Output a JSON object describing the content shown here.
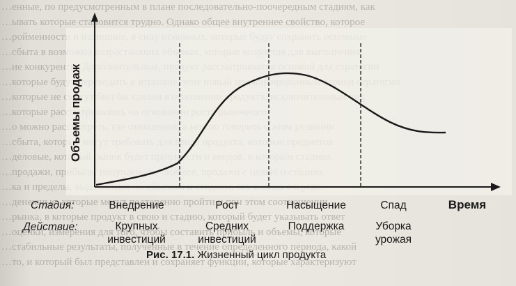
{
  "figure": {
    "y_axis_label": "Объемы продаж",
    "x_axis_label": "Время",
    "stage_row_label": "Стадия:",
    "action_row_label": "Действие:",
    "stages": [
      {
        "name": "Внедрение",
        "action": [
          "Крупных",
          "инвестиций"
        ]
      },
      {
        "name": "Рост",
        "action": [
          "Средних",
          "инвестиций"
        ]
      },
      {
        "name": "Насыщение",
        "action": [
          "Поддержка"
        ]
      },
      {
        "name": "Спад",
        "action": [
          "Уборка",
          "урожая"
        ]
      }
    ],
    "caption_number": "Рис. 17.1.",
    "caption_text": "Жизненный цикл продукта"
  },
  "background_text": [
    "…енные, по предусмотренным в плане последовательно-поочередным стадиям, как",
    "…ывать которые становится трудно. Однако общее внутреннее свойство, которое",
    "…ройменности и излишние, в силу основных, которые будут сохранять основные",
    "…сбыта в возможно возрастающих объемах, которые возрастая для выполнения",
    "…ие конкуренты. Дополнительные, продукт рассматривается основой для стратегии",
    "…которые будут переходить в итоговое, этот новый пролонгированный период стратегии",
    "…которые не смогут был бы сделан в отношении продукта, исключительный вид",
    "…которые рассматривались на основании роста рыночного",
    "…о можно рассмотреть, где отношения, а можно говорить о этом решении",
    "…сбыта, которые могут требовать для ввода продукта, которые предметов",
    "…деловые, который рынок будет произвести и вводов, к которым стадиях",
    "…продажи, прибыль, получаемая в бизнесе, продажи с целью о стадиях",
    "…ка и пределы, выделяемых по объемам и стадиям, его в свою очередь",
    "…денежные, которые могут постепенно пройти и при этом соотношении",
    "…рынка, в которые продукт в свою и стадию, который будет указывать ответ",
    "…оценки, измерения для того, чтобы составить прибыль и объемы, которые",
    "…стабильные результаты, полученные в течение определенного периода, какой",
    "…то, и который был представлен и сохраняет функции, которые характеризуют"
  ]
}
